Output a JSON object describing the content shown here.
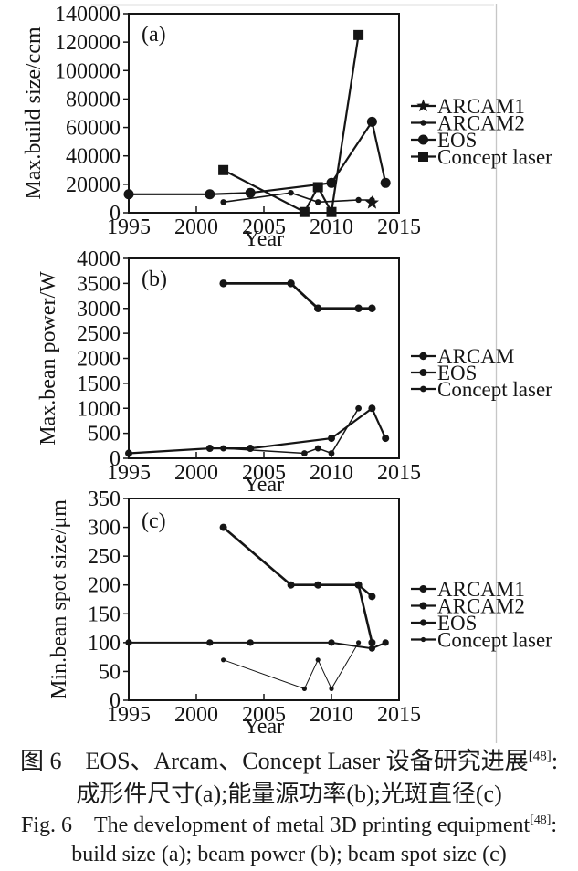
{
  "page": {
    "ink_color": "#151515",
    "top_rule_color": "#b9b9b9",
    "column_rule_color": "#c6c6c6"
  },
  "caption": {
    "zh_line1": "图 6 EOS、Arcam、Concept Laser 设备研究进展",
    "ref_sup": "[48]",
    "colon": ":",
    "zh_line2": "成形件尺寸(a);能量源功率(b);光斑直径(c)",
    "en_line1": "Fig. 6 The development of metal 3D printing equipment",
    "en_line2": "build size (a); beam power (b); beam spot size (c)"
  },
  "chart_data": [
    {
      "type": "line",
      "panel": "(a)",
      "xlabel": "Year",
      "ylabel": "Max.build size/ccm",
      "xlim": [
        1995,
        2015
      ],
      "ylim": [
        0,
        140000
      ],
      "xticks": [
        1995,
        2000,
        2005,
        2010,
        2015
      ],
      "yticks": [
        0,
        20000,
        40000,
        60000,
        80000,
        100000,
        120000,
        140000
      ],
      "grid": false,
      "legend_position": "right-outside",
      "series": [
        {
          "name": "ARCAM1",
          "marker": "star",
          "marker_size": 8,
          "line_width": 1.8,
          "points": [
            [
              2013,
              7000
            ]
          ]
        },
        {
          "name": "ARCAM2",
          "marker": "dot",
          "marker_size": 3.2,
          "line_width": 1.6,
          "points": [
            [
              2002,
              7500
            ],
            [
              2007,
              14000
            ],
            [
              2009,
              7500
            ],
            [
              2012,
              9000
            ],
            [
              2013,
              9000
            ]
          ]
        },
        {
          "name": "EOS",
          "marker": "circle",
          "marker_size": 5.5,
          "line_width": 2.2,
          "points": [
            [
              1995,
              13000
            ],
            [
              2001,
              13000
            ],
            [
              2004,
              14000
            ],
            [
              2010,
              21000
            ],
            [
              2013,
              64000
            ],
            [
              2014,
              21000
            ]
          ]
        },
        {
          "name": "Concept laser",
          "marker": "square",
          "marker_size": 5.5,
          "line_width": 2.2,
          "points": [
            [
              2002,
              30000
            ],
            [
              2008,
              500
            ],
            [
              2009,
              18000
            ],
            [
              2010,
              500
            ],
            [
              2012,
              125000
            ]
          ]
        }
      ]
    },
    {
      "type": "line",
      "panel": "(b)",
      "xlabel": "Year",
      "ylabel": "Max.bean power/W",
      "xlim": [
        1995,
        2015
      ],
      "ylim": [
        0,
        4000
      ],
      "xticks": [
        1995,
        2000,
        2005,
        2010,
        2015
      ],
      "yticks": [
        0,
        500,
        1000,
        1500,
        2000,
        2500,
        3000,
        3500,
        4000
      ],
      "grid": false,
      "legend_position": "right-outside",
      "series": [
        {
          "name": "ARCAM",
          "marker": "dot",
          "marker_size": 4.2,
          "line_width": 2.8,
          "points": [
            [
              2002,
              3500
            ],
            [
              2007,
              3500
            ],
            [
              2009,
              3000
            ],
            [
              2012,
              3000
            ],
            [
              2013,
              3000
            ]
          ]
        },
        {
          "name": "EOS",
          "marker": "dot",
          "marker_size": 4,
          "line_width": 2.2,
          "points": [
            [
              1995,
              100
            ],
            [
              2001,
              200
            ],
            [
              2004,
              200
            ],
            [
              2010,
              400
            ],
            [
              2013,
              1000
            ],
            [
              2014,
              400
            ]
          ]
        },
        {
          "name": "Concept laser",
          "marker": "dot",
          "marker_size": 3.4,
          "line_width": 1.5,
          "points": [
            [
              2002,
              200
            ],
            [
              2008,
              100
            ],
            [
              2009,
              200
            ],
            [
              2010,
              100
            ],
            [
              2012,
              1000
            ]
          ]
        }
      ]
    },
    {
      "type": "line",
      "panel": "(c)",
      "xlabel": "Year",
      "ylabel": "Min.bean spot size/μm",
      "xlim": [
        1995,
        2015
      ],
      "ylim": [
        0,
        350
      ],
      "xticks": [
        1995,
        2000,
        2005,
        2010,
        2015
      ],
      "yticks": [
        0,
        50,
        100,
        150,
        200,
        250,
        300,
        350
      ],
      "grid": false,
      "legend_position": "right-outside",
      "series": [
        {
          "name": "ARCAM1",
          "marker": "dot",
          "marker_size": 4,
          "line_width": 2.4,
          "points": [
            [
              2012,
              200
            ],
            [
              2013,
              180
            ]
          ]
        },
        {
          "name": "ARCAM2",
          "marker": "dot",
          "marker_size": 4,
          "line_width": 2.6,
          "points": [
            [
              2002,
              300
            ],
            [
              2007,
              200
            ],
            [
              2009,
              200
            ],
            [
              2012,
              200
            ],
            [
              2013,
              100
            ]
          ]
        },
        {
          "name": "EOS",
          "marker": "dot",
          "marker_size": 3.6,
          "line_width": 2,
          "points": [
            [
              1995,
              100
            ],
            [
              2001,
              100
            ],
            [
              2004,
              100
            ],
            [
              2010,
              100
            ],
            [
              2013,
              90
            ],
            [
              2014,
              100
            ]
          ]
        },
        {
          "name": "Concept laser",
          "marker": "dot",
          "marker_size": 2.6,
          "line_width": 1,
          "points": [
            [
              2002,
              70
            ],
            [
              2008,
              20
            ],
            [
              2009,
              70
            ],
            [
              2010,
              20
            ],
            [
              2012,
              100
            ]
          ]
        }
      ]
    }
  ]
}
